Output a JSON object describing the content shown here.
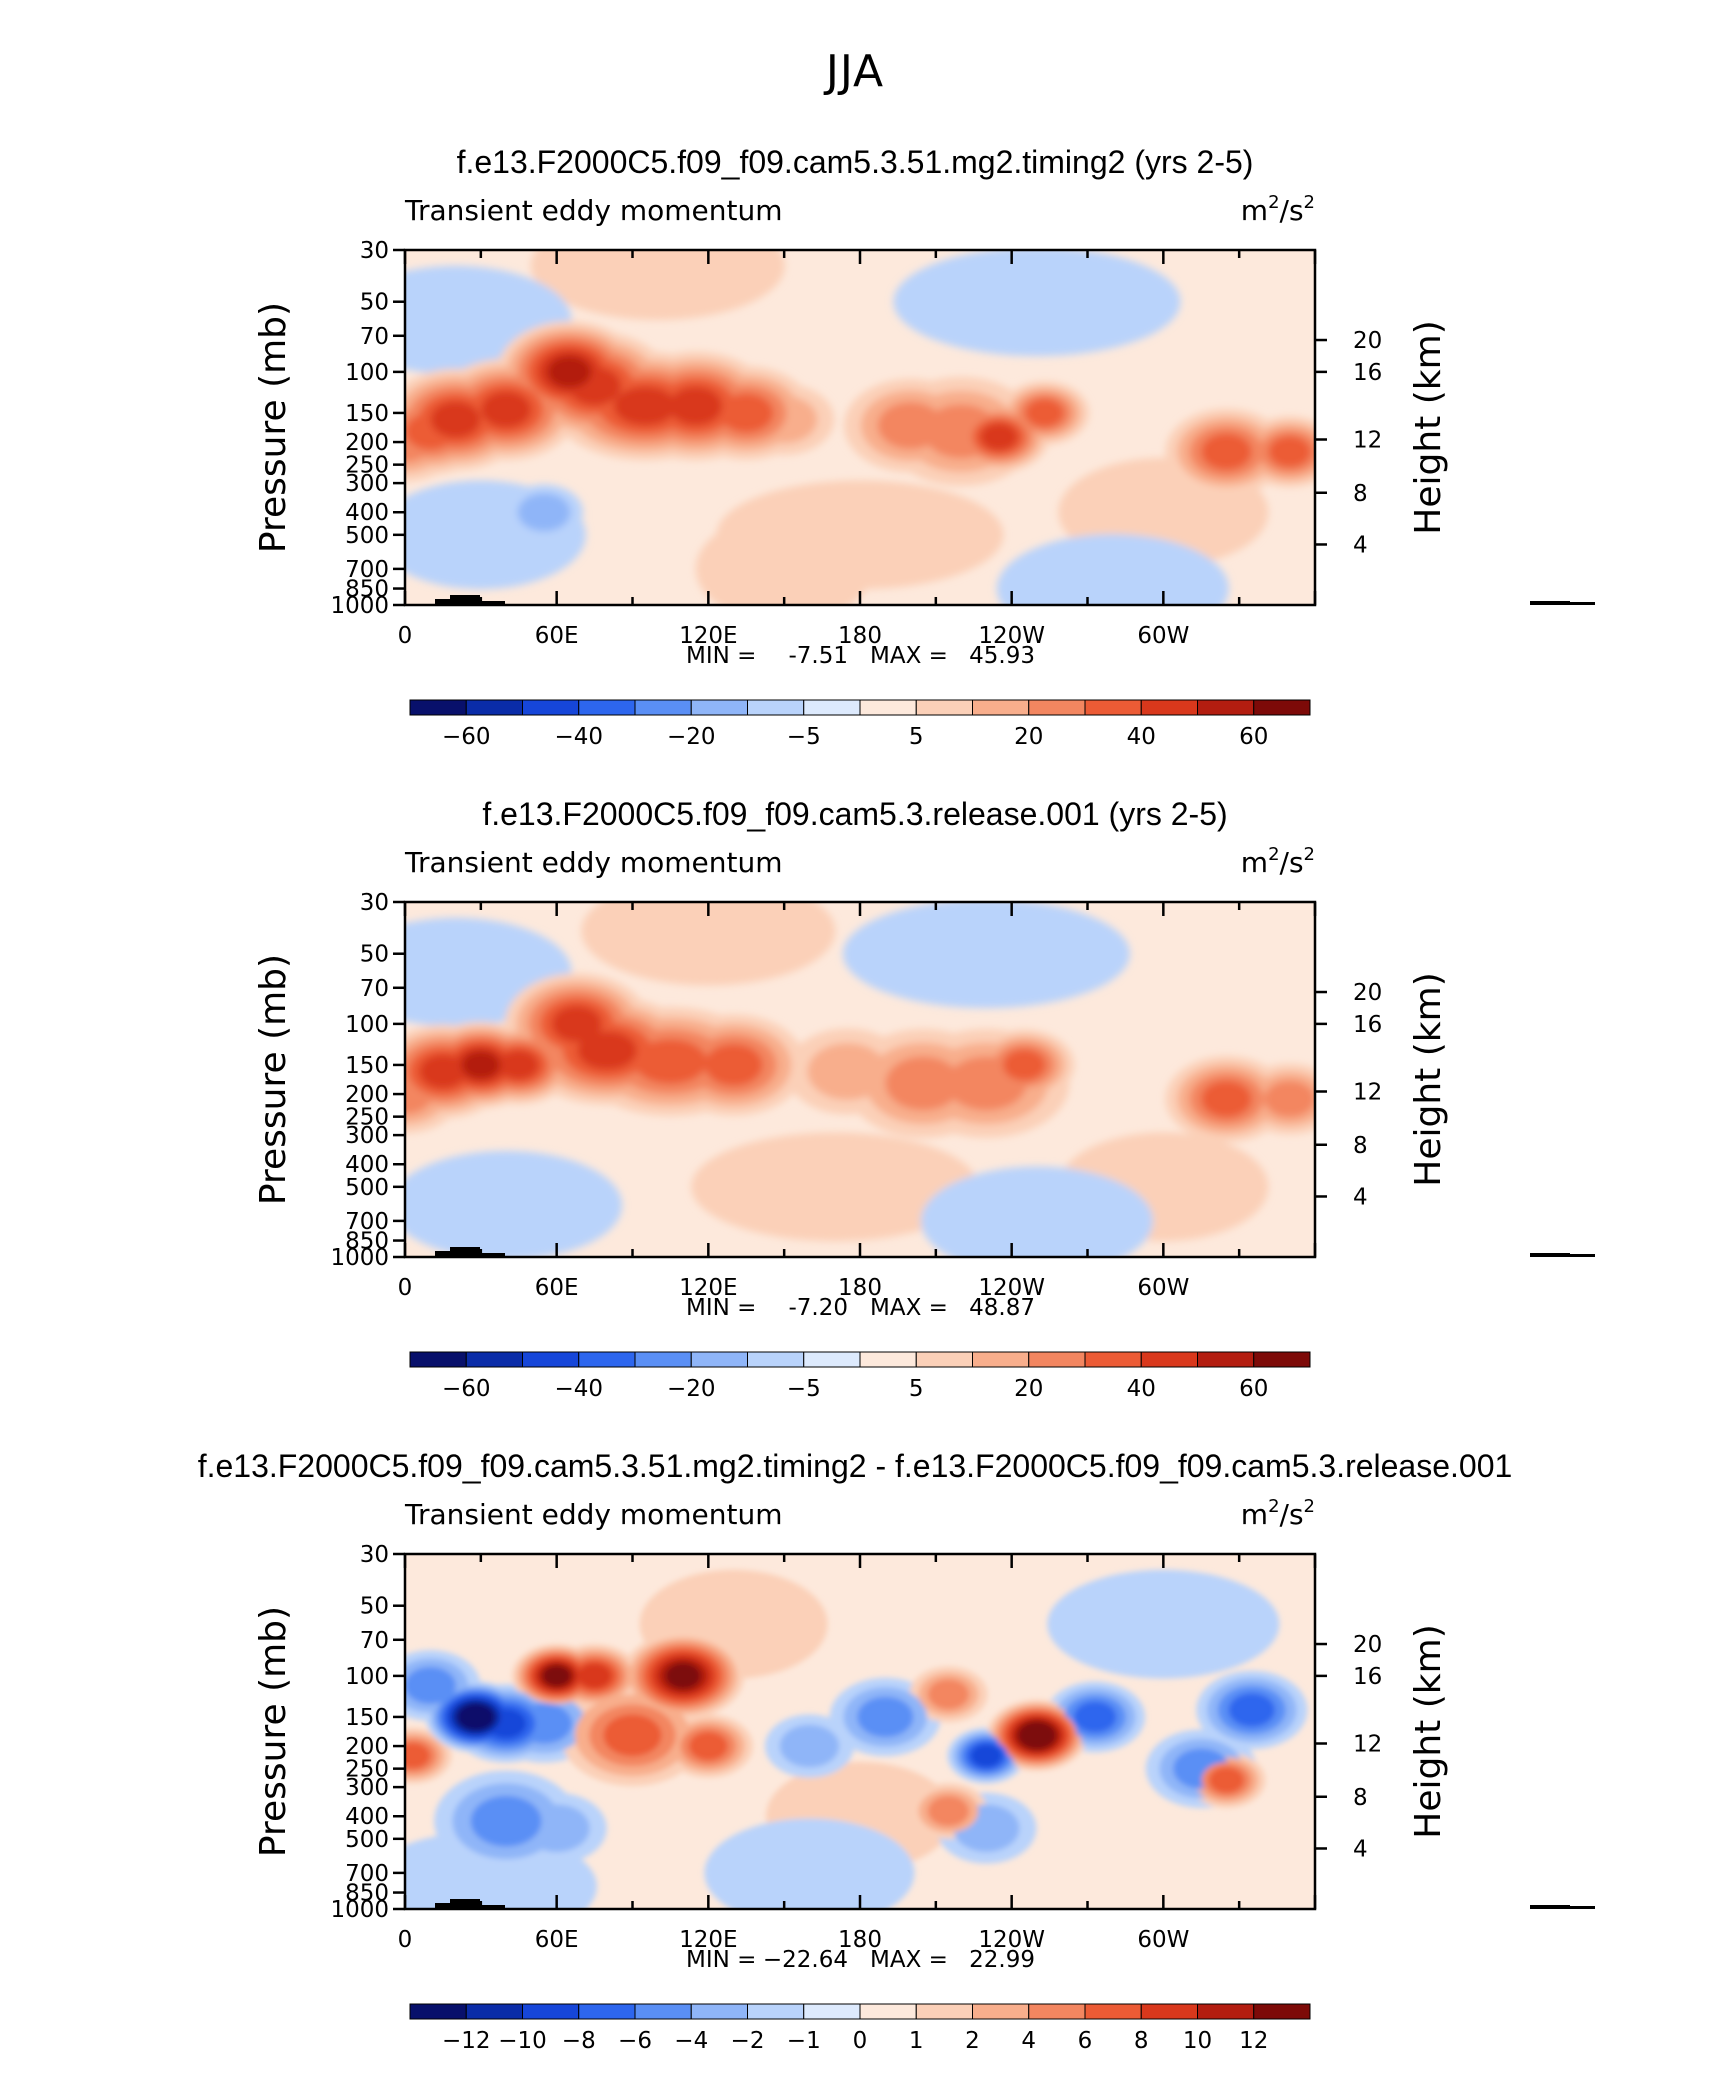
{
  "figure": {
    "title": "JJA"
  },
  "colors": {
    "neg": [
      "#08106b",
      "#0a2ca8",
      "#1646d9",
      "#2d66ee",
      "#5a8ff5",
      "#8fb5f8",
      "#b9d3fb",
      "#ddeafd"
    ],
    "pos": [
      "#fde9dc",
      "#fbd0b8",
      "#f8ae8c",
      "#f38660",
      "#ec5b35",
      "#d9381c",
      "#b31d10",
      "#7d0a08"
    ]
  },
  "chart_data": [
    {
      "type": "contour",
      "title": "f.e13.F2000C5.f09_f09.cam5.3.51.mg2.timing2 (yrs 2-5)",
      "variable": "Transient eddy momentum",
      "units_base": "m",
      "units_exp1": "2",
      "units_mid": "/s",
      "units_exp2": "2",
      "ylabel": "Pressure (mb)",
      "ylabel_right": "Height (km)",
      "y_ticks": [
        "30",
        "50",
        "70",
        "100",
        "150",
        "200",
        "250",
        "300",
        "400",
        "500",
        "700",
        "850",
        "1000"
      ],
      "y_ticks_right": [
        "20",
        "16",
        "12",
        "8",
        "4"
      ],
      "x_ticks": [
        "0",
        "60E",
        "120E",
        "180",
        "120W",
        "60W"
      ],
      "min_label": "MIN =",
      "min": "-7.51",
      "max_label": "MAX =",
      "max": "45.93",
      "colorbar_labels": [
        "−60",
        "−40",
        "−20",
        "−5",
        "5",
        "20",
        "40",
        "60"
      ],
      "blobs": [
        {
          "lon": 0,
          "lev": 200,
          "level": 3,
          "w": 0.9
        },
        {
          "lon": 10,
          "lev": 180,
          "level": 4,
          "w": 1.0
        },
        {
          "lon": 20,
          "lev": 160,
          "level": 5,
          "w": 1.2
        },
        {
          "lon": 40,
          "lev": 145,
          "level": 5,
          "w": 1.2
        },
        {
          "lon": 65,
          "lev": 100,
          "level": 6,
          "w": 1.2
        },
        {
          "lon": 75,
          "lev": 115,
          "level": 5,
          "w": 1.3
        },
        {
          "lon": 95,
          "lev": 140,
          "level": 5,
          "w": 1.6
        },
        {
          "lon": 115,
          "lev": 140,
          "level": 5,
          "w": 1.3
        },
        {
          "lon": 135,
          "lev": 150,
          "level": 4,
          "w": 1.1
        },
        {
          "lon": 150,
          "lev": 160,
          "level": 2,
          "w": 0.8
        },
        {
          "lon": 200,
          "lev": 170,
          "level": 3,
          "w": 1.1
        },
        {
          "lon": 220,
          "lev": 180,
          "level": 3,
          "w": 1.3
        },
        {
          "lon": 235,
          "lev": 190,
          "level": 5,
          "w": 0.8
        },
        {
          "lon": 253,
          "lev": 150,
          "level": 4,
          "w": 0.7
        },
        {
          "lon": 325,
          "lev": 220,
          "level": 4,
          "w": 1.0
        },
        {
          "lon": 350,
          "lev": 220,
          "level": 4,
          "w": 0.8
        },
        {
          "lon": 55,
          "lev": 400,
          "level": -2,
          "w": 0.6
        },
        {
          "lon": 100,
          "lev": 35,
          "level": 1,
          "w": 2.2
        },
        {
          "lon": 180,
          "lev": 500,
          "level": 1,
          "w": 2.5
        },
        {
          "lon": 150,
          "lev": 700,
          "level": 1,
          "w": 1.5
        },
        {
          "lon": 300,
          "lev": 400,
          "level": 1,
          "w": 1.8
        },
        {
          "lon": 20,
          "lev": 60,
          "level": -1,
          "w": 2.0
        },
        {
          "lon": 250,
          "lev": 50,
          "level": -1,
          "w": 2.5
        },
        {
          "lon": 30,
          "lev": 500,
          "level": -1,
          "w": 1.8
        },
        {
          "lon": 280,
          "lev": 850,
          "level": -1,
          "w": 2.0
        }
      ]
    },
    {
      "type": "contour",
      "title": "f.e13.F2000C5.f09_f09.cam5.3.release.001 (yrs 2-5)",
      "variable": "Transient eddy momentum",
      "units_base": "m",
      "units_exp1": "2",
      "units_mid": "/s",
      "units_exp2": "2",
      "ylabel": "Pressure (mb)",
      "ylabel_right": "Height (km)",
      "y_ticks": [
        "30",
        "50",
        "70",
        "100",
        "150",
        "200",
        "250",
        "300",
        "400",
        "500",
        "700",
        "850",
        "1000"
      ],
      "y_ticks_right": [
        "20",
        "16",
        "12",
        "8",
        "4"
      ],
      "x_ticks": [
        "0",
        "60E",
        "120E",
        "180",
        "120W",
        "60W"
      ],
      "min_label": "MIN =",
      "min": "-7.20",
      "max_label": "MAX =",
      "max": "48.87",
      "colorbar_labels": [
        "−60",
        "−40",
        "−20",
        "−5",
        "5",
        "20",
        "40",
        "60"
      ],
      "blobs": [
        {
          "lon": 0,
          "lev": 200,
          "level": 3,
          "w": 0.9
        },
        {
          "lon": 15,
          "lev": 160,
          "level": 5,
          "w": 1.1
        },
        {
          "lon": 30,
          "lev": 150,
          "level": 6,
          "w": 1.0
        },
        {
          "lon": 45,
          "lev": 150,
          "level": 5,
          "w": 0.9
        },
        {
          "lon": 68,
          "lev": 100,
          "level": 5,
          "w": 1.2
        },
        {
          "lon": 80,
          "lev": 130,
          "level": 5,
          "w": 1.5
        },
        {
          "lon": 105,
          "lev": 145,
          "level": 4,
          "w": 1.6
        },
        {
          "lon": 130,
          "lev": 150,
          "level": 4,
          "w": 1.2
        },
        {
          "lon": 175,
          "lev": 160,
          "level": 2,
          "w": 1.0
        },
        {
          "lon": 205,
          "lev": 180,
          "level": 3,
          "w": 1.3
        },
        {
          "lon": 230,
          "lev": 180,
          "level": 3,
          "w": 1.4
        },
        {
          "lon": 245,
          "lev": 150,
          "level": 4,
          "w": 0.8
        },
        {
          "lon": 325,
          "lev": 210,
          "level": 4,
          "w": 1.0
        },
        {
          "lon": 350,
          "lev": 210,
          "level": 3,
          "w": 0.8
        },
        {
          "lon": 120,
          "lev": 40,
          "level": 1,
          "w": 2.2
        },
        {
          "lon": 170,
          "lev": 500,
          "level": 1,
          "w": 2.5
        },
        {
          "lon": 300,
          "lev": 500,
          "level": 1,
          "w": 1.8
        },
        {
          "lon": 20,
          "lev": 60,
          "level": -1,
          "w": 2.0
        },
        {
          "lon": 230,
          "lev": 50,
          "level": -1,
          "w": 2.5
        },
        {
          "lon": 40,
          "lev": 600,
          "level": -1,
          "w": 2.0
        },
        {
          "lon": 250,
          "lev": 700,
          "level": -1,
          "w": 2.0
        }
      ]
    },
    {
      "type": "contour",
      "title": "f.e13.F2000C5.f09_f09.cam5.3.51.mg2.timing2 - f.e13.F2000C5.f09_f09.cam5.3.release.001",
      "variable": "Transient eddy momentum",
      "units_base": "m",
      "units_exp1": "2",
      "units_mid": "/s",
      "units_exp2": "2",
      "ylabel": "Pressure (mb)",
      "ylabel_right": "Height (km)",
      "y_ticks": [
        "30",
        "50",
        "70",
        "100",
        "150",
        "200",
        "250",
        "300",
        "400",
        "500",
        "700",
        "850",
        "1000"
      ],
      "y_ticks_right": [
        "20",
        "16",
        "12",
        "8",
        "4"
      ],
      "x_ticks": [
        "0",
        "60E",
        "120E",
        "180",
        "120W",
        "60W"
      ],
      "min_label": "MIN =",
      "min": "−22.64",
      "max_label": "MAX =",
      "max": "22.99",
      "colorbar_labels": [
        "−12",
        "−10",
        "−8",
        "−6",
        "−4",
        "−2",
        "−1",
        "0",
        "1",
        "2",
        "4",
        "6",
        "8",
        "10",
        "12"
      ],
      "blobs": [
        {
          "lon": 3,
          "lev": 220,
          "level": 4,
          "w": 0.6
        },
        {
          "lon": 10,
          "lev": 110,
          "level": -3,
          "w": 0.8
        },
        {
          "lon": 28,
          "lev": 150,
          "level": -8,
          "w": 0.8
        },
        {
          "lon": 40,
          "lev": 160,
          "level": -5,
          "w": 0.9
        },
        {
          "lon": 55,
          "lev": 160,
          "level": -3,
          "w": 0.9
        },
        {
          "lon": 60,
          "lev": 100,
          "level": 7,
          "w": 0.7
        },
        {
          "lon": 75,
          "lev": 100,
          "level": 5,
          "w": 0.7
        },
        {
          "lon": 90,
          "lev": 180,
          "level": 4,
          "w": 1.2
        },
        {
          "lon": 110,
          "lev": 100,
          "level": 7,
          "w": 1.0
        },
        {
          "lon": 120,
          "lev": 200,
          "level": 4,
          "w": 0.7
        },
        {
          "lon": 40,
          "lev": 420,
          "level": -3,
          "w": 1.2
        },
        {
          "lon": 60,
          "lev": 450,
          "level": -2,
          "w": 0.8
        },
        {
          "lon": 190,
          "lev": 150,
          "level": -3,
          "w": 0.9
        },
        {
          "lon": 215,
          "lev": 120,
          "level": 3,
          "w": 0.6
        },
        {
          "lon": 230,
          "lev": 220,
          "level": -5,
          "w": 0.6
        },
        {
          "lon": 250,
          "lev": 180,
          "level": 8,
          "w": 0.8
        },
        {
          "lon": 273,
          "lev": 150,
          "level": -4,
          "w": 0.8
        },
        {
          "lon": 315,
          "lev": 250,
          "level": -3,
          "w": 0.9
        },
        {
          "lon": 325,
          "lev": 280,
          "level": 4,
          "w": 0.6
        },
        {
          "lon": 335,
          "lev": 140,
          "level": -4,
          "w": 0.9
        },
        {
          "lon": 230,
          "lev": 450,
          "level": -2,
          "w": 0.8
        },
        {
          "lon": 215,
          "lev": 380,
          "level": 3,
          "w": 0.6
        },
        {
          "lon": 160,
          "lev": 200,
          "level": -2,
          "w": 0.7
        },
        {
          "lon": 180,
          "lev": 400,
          "level": 1,
          "w": 1.6
        },
        {
          "lon": 130,
          "lev": 60,
          "level": 1,
          "w": 1.6
        },
        {
          "lon": 30,
          "lev": 800,
          "level": -1,
          "w": 2.0
        },
        {
          "lon": 300,
          "lev": 60,
          "level": -1,
          "w": 2.0
        },
        {
          "lon": 160,
          "lev": 700,
          "level": -1,
          "w": 1.8
        }
      ]
    }
  ]
}
